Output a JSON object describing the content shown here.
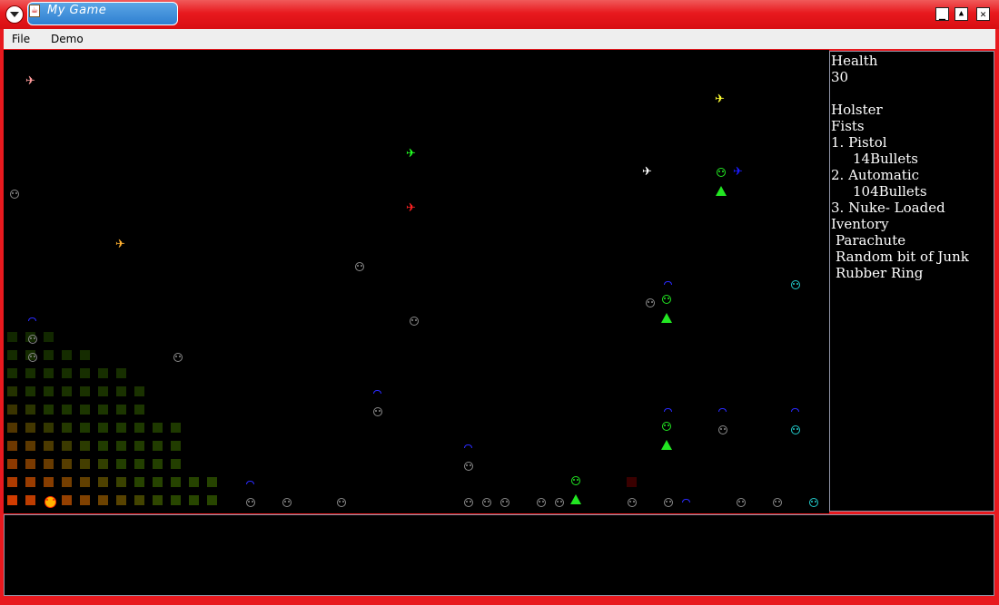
{
  "window": {
    "title": "My Game",
    "controls": {
      "minimize": "_",
      "maximize": "▲",
      "close": "✕"
    },
    "accent": "#e8191e"
  },
  "menu": {
    "file": "File",
    "demo": "Demo"
  },
  "hud": {
    "health_label": "Health",
    "health_value": "30",
    "holster_label": "Holster",
    "fists": "Fists",
    "weapon1": "1. Pistol",
    "weapon1_ammo": "14Bullets",
    "weapon2": "2. Automatic",
    "weapon2_ammo": "104Bullets",
    "weapon3": "3. Nuke- Loaded",
    "inventory_label": "Iventory",
    "items": [
      "Parachute",
      "Random bit of Junk",
      "Rubber Ring"
    ]
  },
  "sprites": {
    "icons": {
      "enemy": "grey-smiley-icon",
      "ally": "green-smiley-icon",
      "player": "orange-frown-icon",
      "plane": "airplane-icon",
      "parachute": "parachute-icon",
      "spawn": "green-triangle-icon"
    }
  }
}
